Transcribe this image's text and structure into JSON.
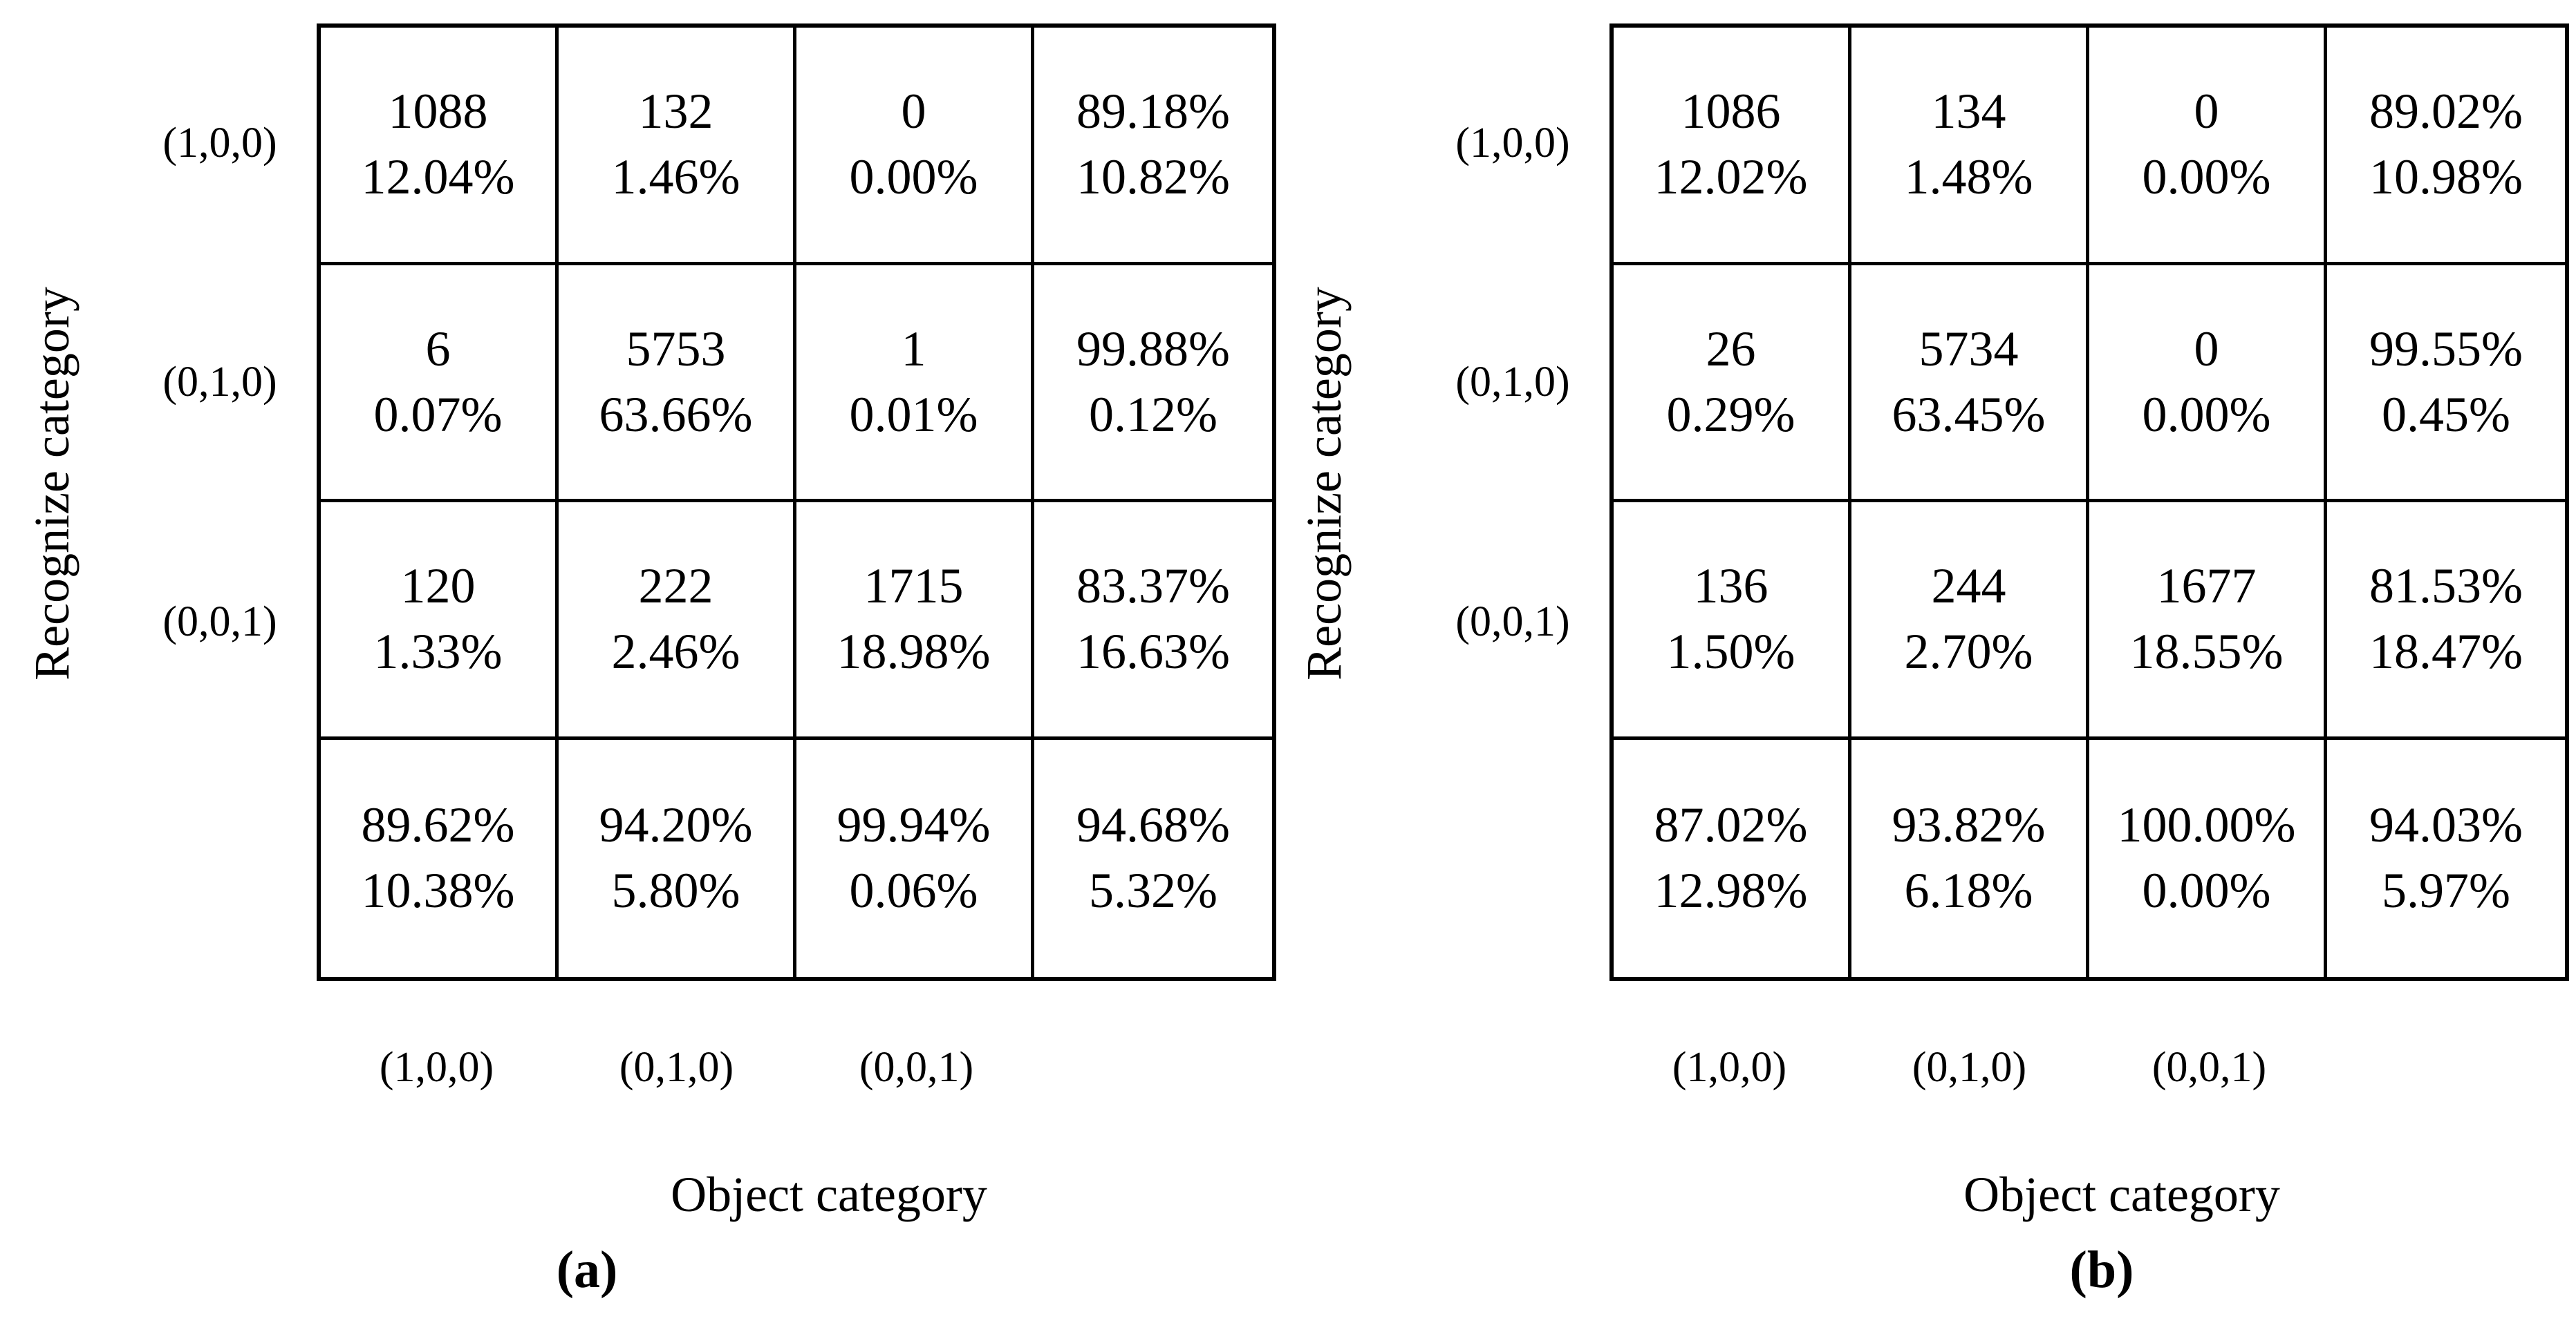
{
  "panels": [
    {
      "letter": "(a)",
      "y_axis_label": "Recognize category",
      "x_axis_label": "Object category",
      "row_labels": [
        "(1,0,0)",
        "(0,1,0)",
        "(0,0,1)"
      ],
      "col_labels": [
        "(1,0,0)",
        "(0,1,0)",
        "(0,0,1)"
      ],
      "cells": [
        {
          "v": "1088",
          "p": "12.04%"
        },
        {
          "v": "132",
          "p": "1.46%"
        },
        {
          "v": "0",
          "p": "0.00%"
        },
        {
          "v": "89.18%",
          "p": "10.82%"
        },
        {
          "v": "6",
          "p": "0.07%"
        },
        {
          "v": "5753",
          "p": "63.66%"
        },
        {
          "v": "1",
          "p": "0.01%"
        },
        {
          "v": "99.88%",
          "p": "0.12%"
        },
        {
          "v": "120",
          "p": "1.33%"
        },
        {
          "v": "222",
          "p": "2.46%"
        },
        {
          "v": "1715",
          "p": "18.98%"
        },
        {
          "v": "83.37%",
          "p": "16.63%"
        },
        {
          "v": "89.62%",
          "p": "10.38%"
        },
        {
          "v": "94.20%",
          "p": "5.80%"
        },
        {
          "v": "99.94%",
          "p": "0.06%"
        },
        {
          "v": "94.68%",
          "p": "5.32%"
        }
      ]
    },
    {
      "letter": "(b)",
      "y_axis_label": "Recognize category",
      "x_axis_label": "Object category",
      "row_labels": [
        "(1,0,0)",
        "(0,1,0)",
        "(0,0,1)"
      ],
      "col_labels": [
        "(1,0,0)",
        "(0,1,0)",
        "(0,0,1)"
      ],
      "cells": [
        {
          "v": "1086",
          "p": "12.02%"
        },
        {
          "v": "134",
          "p": "1.48%"
        },
        {
          "v": "0",
          "p": "0.00%"
        },
        {
          "v": "89.02%",
          "p": "10.98%"
        },
        {
          "v": "26",
          "p": "0.29%"
        },
        {
          "v": "5734",
          "p": "63.45%"
        },
        {
          "v": "0",
          "p": "0.00%"
        },
        {
          "v": "99.55%",
          "p": "0.45%"
        },
        {
          "v": "136",
          "p": "1.50%"
        },
        {
          "v": "244",
          "p": "2.70%"
        },
        {
          "v": "1677",
          "p": "18.55%"
        },
        {
          "v": "81.53%",
          "p": "18.47%"
        },
        {
          "v": "87.02%",
          "p": "12.98%"
        },
        {
          "v": "93.82%",
          "p": "6.18%"
        },
        {
          "v": "100.00%",
          "p": "0.00%"
        },
        {
          "v": "94.03%",
          "p": "5.97%"
        }
      ]
    }
  ],
  "chart_data": [
    {
      "type": "table",
      "subtype": "confusion-matrix",
      "title": "(a)",
      "xlabel": "Object category",
      "ylabel": "Recognize category",
      "x_categories": [
        "(1,0,0)",
        "(0,1,0)",
        "(0,0,1)"
      ],
      "y_categories": [
        "(1,0,0)",
        "(0,1,0)",
        "(0,0,1)"
      ],
      "counts": [
        [
          1088,
          132,
          0
        ],
        [
          6,
          5753,
          1
        ],
        [
          120,
          222,
          1715
        ]
      ],
      "count_percents_of_total": [
        [
          12.04,
          1.46,
          0.0
        ],
        [
          0.07,
          63.66,
          0.01
        ],
        [
          1.33,
          2.46,
          18.98
        ]
      ],
      "row_correct_percent": [
        89.18,
        99.88,
        83.37
      ],
      "row_error_percent": [
        10.82,
        0.12,
        16.63
      ],
      "col_correct_percent": [
        89.62,
        94.2,
        99.94
      ],
      "col_error_percent": [
        10.38,
        5.8,
        0.06
      ],
      "overall_accuracy_percent": 94.68,
      "overall_error_percent": 5.32
    },
    {
      "type": "table",
      "subtype": "confusion-matrix",
      "title": "(b)",
      "xlabel": "Object category",
      "ylabel": "Recognize category",
      "x_categories": [
        "(1,0,0)",
        "(0,1,0)",
        "(0,0,1)"
      ],
      "y_categories": [
        "(1,0,0)",
        "(0,1,0)",
        "(0,0,1)"
      ],
      "counts": [
        [
          1086,
          134,
          0
        ],
        [
          26,
          5734,
          0
        ],
        [
          136,
          244,
          1677
        ]
      ],
      "count_percents_of_total": [
        [
          12.02,
          1.48,
          0.0
        ],
        [
          0.29,
          63.45,
          0.0
        ],
        [
          1.5,
          2.7,
          18.55
        ]
      ],
      "row_correct_percent": [
        89.02,
        99.55,
        81.53
      ],
      "row_error_percent": [
        10.98,
        0.45,
        18.47
      ],
      "col_correct_percent": [
        87.02,
        93.82,
        100.0
      ],
      "col_error_percent": [
        12.98,
        6.18,
        0.0
      ],
      "overall_accuracy_percent": 94.03,
      "overall_error_percent": 5.97
    }
  ],
  "colors": {
    "foreground": "#000000",
    "background": "#ffffff"
  }
}
